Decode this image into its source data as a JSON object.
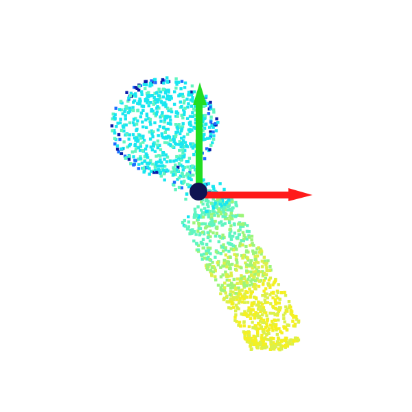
{
  "scene": {
    "background": "#ffffff",
    "object": "point-cloud",
    "colormap": "jet",
    "colors": {
      "dark_blue": "#0a1aa8",
      "blue": "#1e6cff",
      "cyan": "#19e6f0",
      "aqua_green": "#5ff5c0",
      "green": "#9cf57a",
      "yellow_green": "#dcf04a",
      "yellow": "#f5f020"
    }
  },
  "axes": {
    "x_axis": {
      "color": "#ff1a1a",
      "icon": "x-axis-arrow"
    },
    "y_axis": {
      "color": "#22dd22",
      "icon": "y-axis-arrow"
    },
    "origin": {
      "color": "#0f1452",
      "icon": "origin-sphere"
    }
  }
}
